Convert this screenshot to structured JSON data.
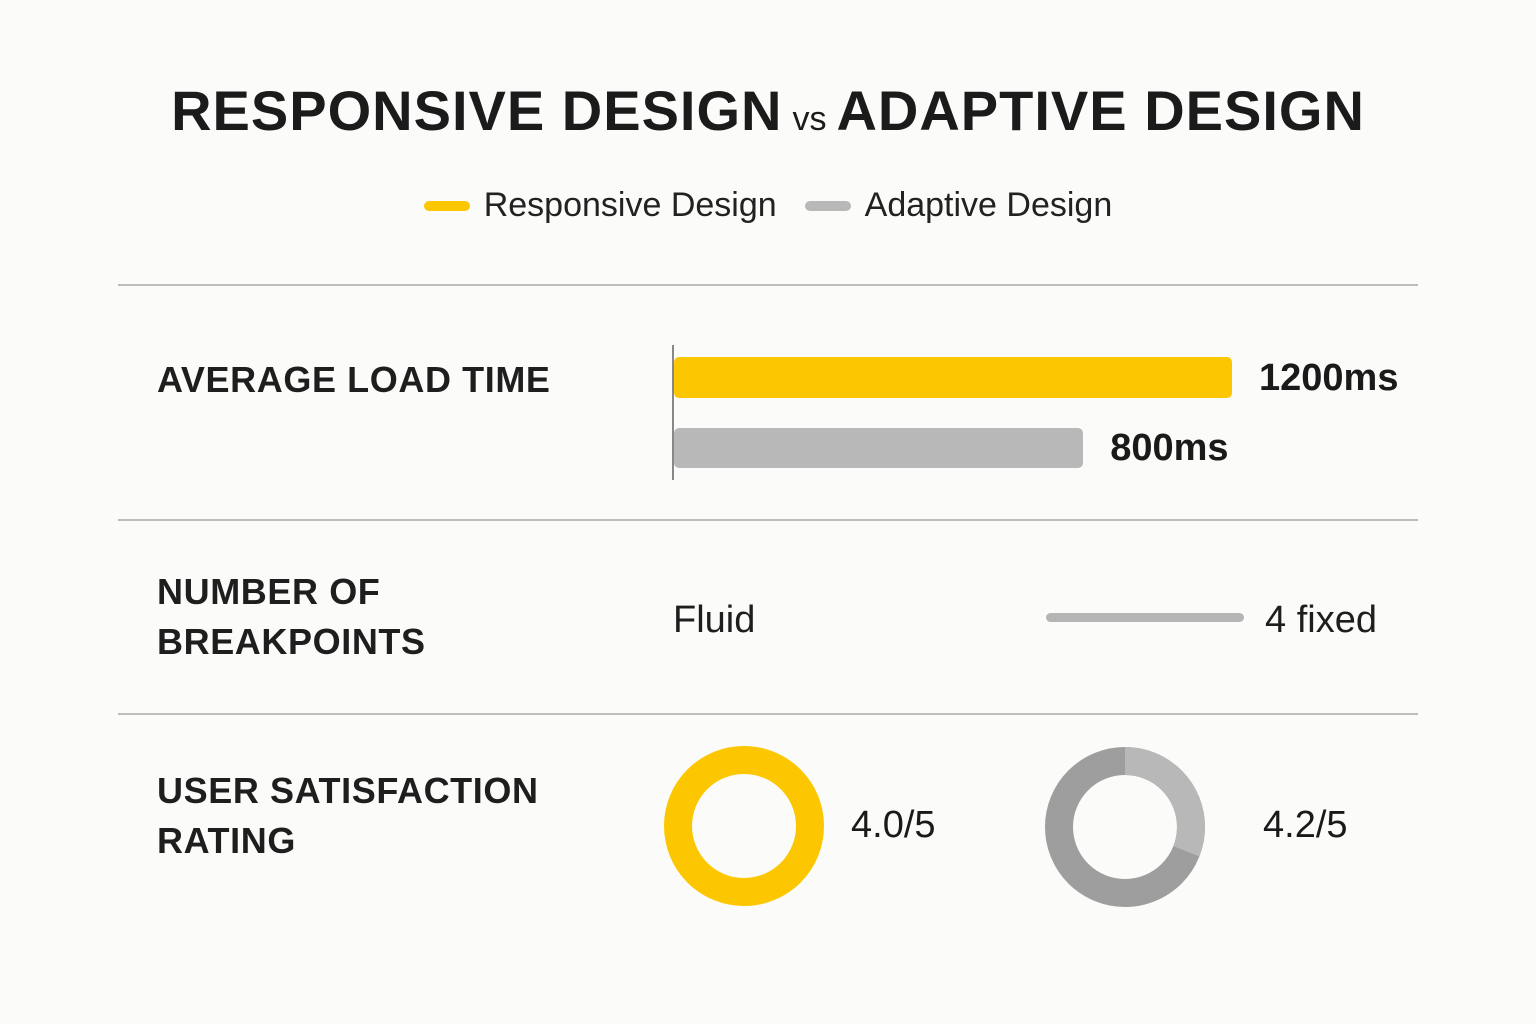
{
  "title": {
    "left": "RESPONSIVE DESIGN",
    "vs": "vs",
    "right": "ADAPTIVE DESIGN"
  },
  "legend": [
    {
      "label": "Responsive Design",
      "color": "#fcc700"
    },
    {
      "label": "Adaptive Design",
      "color": "#b8b8b8"
    }
  ],
  "colors": {
    "responsive": "#fcc700",
    "adaptive": "#b8b8b8",
    "adaptive_dark": "#9e9e9e",
    "divider": "#bdbdbd",
    "background": "#fbfbf9"
  },
  "chart_data": [
    {
      "type": "bar",
      "title": "AVERAGE LOAD TIME",
      "categories": [
        "Responsive Design",
        "Adaptive Design"
      ],
      "values": [
        1200,
        800
      ],
      "value_labels": [
        "1200ms",
        "800ms"
      ],
      "unit": "ms",
      "xlim": [
        0,
        1200
      ]
    },
    {
      "type": "table",
      "title_lines": [
        "NUMBER OF",
        "BREAKPOINTS"
      ],
      "responsive": "Fluid",
      "adaptive": "4 fixed"
    },
    {
      "type": "pie",
      "title_lines": [
        "USER SATISFACTION",
        "RATING"
      ],
      "series": [
        {
          "name": "Responsive Design",
          "value": 4.0,
          "max": 5,
          "label": "4.0/5"
        },
        {
          "name": "Adaptive Design",
          "value": 4.2,
          "max": 5,
          "label": "4.2/5"
        }
      ]
    }
  ]
}
